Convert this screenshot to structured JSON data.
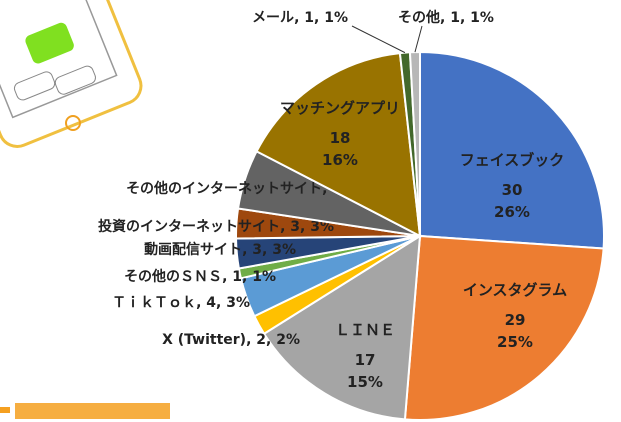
{
  "chart_data": {
    "type": "pie",
    "categories": [
      "フェイスブック",
      "インスタグラム",
      "ＬＩＮＥ",
      "X (Twitter)",
      "ＴｉｋＴｏｋ",
      "その他のＳＮＳ",
      "動画配信サイト",
      "投資のインターネットサイト",
      "その他のインターネットサイト",
      "マッチングアプリ",
      "メール",
      "その他"
    ],
    "values": [
      30,
      29,
      17,
      2,
      4,
      1,
      3,
      3,
      6,
      18,
      1,
      1
    ],
    "percents": [
      26,
      25,
      15,
      2,
      3,
      1,
      3,
      3,
      5,
      16,
      1,
      1
    ],
    "percent_labels": [
      "26%",
      "25%",
      "15%",
      "2%",
      "3%",
      "1%",
      "3%",
      "3%",
      "5%",
      "16%",
      "1%",
      "1%"
    ],
    "label_inside": [
      true,
      true,
      true,
      false,
      false,
      false,
      false,
      false,
      false,
      true,
      false,
      false
    ],
    "label_separator": ", ",
    "colors": [
      "#4472c4",
      "#ed7d31",
      "#a5a5a5",
      "#ffc000",
      "#5b9bd5",
      "#70ad47",
      "#264478",
      "#9e480e",
      "#636363",
      "#997300",
      "#43682b",
      "#b7b7b7"
    ]
  }
}
